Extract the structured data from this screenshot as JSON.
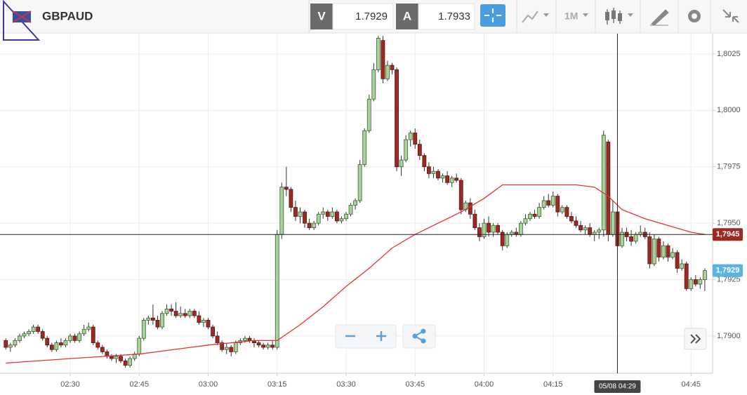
{
  "toolbar": {
    "symbol": "GBPAUD",
    "bid_label": "V",
    "bid": "1.7929",
    "ask_label": "A",
    "ask": "1.7933",
    "timeframe": "1M"
  },
  "chart_data": {
    "type": "candlestick",
    "x": [
      "02:16",
      "02:17",
      "02:18",
      "02:19",
      "02:20",
      "02:21",
      "02:22",
      "02:23",
      "02:24",
      "02:25",
      "02:26",
      "02:27",
      "02:28",
      "02:29",
      "02:30",
      "02:31",
      "02:32",
      "02:33",
      "02:34",
      "02:35",
      "02:36",
      "02:37",
      "02:38",
      "02:39",
      "02:40",
      "02:41",
      "02:42",
      "02:43",
      "02:44",
      "02:45",
      "02:46",
      "02:47",
      "02:48",
      "02:49",
      "02:50",
      "02:51",
      "02:52",
      "02:53",
      "02:54",
      "02:55",
      "02:56",
      "02:57",
      "02:58",
      "02:59",
      "03:00",
      "03:01",
      "03:02",
      "03:03",
      "03:04",
      "03:05",
      "03:06",
      "03:07",
      "03:08",
      "03:09",
      "03:10",
      "03:11",
      "03:12",
      "03:13",
      "03:14",
      "03:15",
      "03:16",
      "03:17",
      "03:18",
      "03:19",
      "03:20",
      "03:21",
      "03:22",
      "03:23",
      "03:24",
      "03:25",
      "03:26",
      "03:27",
      "03:28",
      "03:29",
      "03:30",
      "03:31",
      "03:32",
      "03:33",
      "03:34",
      "03:35",
      "03:36",
      "03:37",
      "03:38",
      "03:39",
      "03:40",
      "03:41",
      "03:42",
      "03:43",
      "03:44",
      "03:45",
      "03:46",
      "03:47",
      "03:48",
      "03:49",
      "03:50",
      "03:51",
      "03:52",
      "03:53",
      "03:54",
      "03:55",
      "03:56",
      "03:57",
      "03:58",
      "03:59",
      "04:00",
      "04:01",
      "04:02",
      "04:03",
      "04:04",
      "04:05",
      "04:06",
      "04:07",
      "04:08",
      "04:09",
      "04:10",
      "04:11",
      "04:12",
      "04:13",
      "04:14",
      "04:15",
      "04:16",
      "04:17",
      "04:18",
      "04:19",
      "04:20",
      "04:21",
      "04:22",
      "04:23",
      "04:24",
      "04:25",
      "04:26",
      "04:27",
      "04:28",
      "04:29",
      "04:30",
      "04:31",
      "04:32",
      "04:33",
      "04:34",
      "04:35",
      "04:36",
      "04:37",
      "04:38",
      "04:39",
      "04:40",
      "04:41",
      "04:42",
      "04:43",
      "04:44",
      "04:45",
      "04:46",
      "04:47",
      "04:48"
    ],
    "ohlc": [
      [
        1.7898,
        1.7899,
        1.7894,
        1.7895
      ],
      [
        1.7895,
        1.7897,
        1.7893,
        1.7896
      ],
      [
        1.7896,
        1.7899,
        1.7895,
        1.7898
      ],
      [
        1.7898,
        1.7901,
        1.7897,
        1.79
      ],
      [
        1.79,
        1.7902,
        1.7899,
        1.7901
      ],
      [
        1.7901,
        1.7903,
        1.79,
        1.7902
      ],
      [
        1.7902,
        1.7905,
        1.7901,
        1.7904
      ],
      [
        1.7904,
        1.7905,
        1.7901,
        1.7902
      ],
      [
        1.7902,
        1.7903,
        1.7898,
        1.7899
      ],
      [
        1.7899,
        1.79,
        1.7895,
        1.7896
      ],
      [
        1.7896,
        1.7897,
        1.7893,
        1.7894
      ],
      [
        1.7894,
        1.7898,
        1.7893,
        1.7897
      ],
      [
        1.7897,
        1.7899,
        1.7895,
        1.7896
      ],
      [
        1.7896,
        1.7899,
        1.7895,
        1.7898
      ],
      [
        1.7898,
        1.7901,
        1.7897,
        1.79
      ],
      [
        1.79,
        1.7901,
        1.7897,
        1.7898
      ],
      [
        1.7898,
        1.7902,
        1.7897,
        1.7901
      ],
      [
        1.7901,
        1.7905,
        1.79,
        1.7903
      ],
      [
        1.7903,
        1.7906,
        1.7902,
        1.7904
      ],
      [
        1.7904,
        1.7905,
        1.7896,
        1.7897
      ],
      [
        1.7897,
        1.7898,
        1.7894,
        1.7895
      ],
      [
        1.7895,
        1.7896,
        1.7892,
        1.7893
      ],
      [
        1.7893,
        1.7894,
        1.789,
        1.7891
      ],
      [
        1.7891,
        1.7892,
        1.7889,
        1.789
      ],
      [
        1.789,
        1.7892,
        1.7888,
        1.7891
      ],
      [
        1.7891,
        1.7892,
        1.7888,
        1.7889
      ],
      [
        1.7889,
        1.789,
        1.7886,
        1.7887
      ],
      [
        1.7887,
        1.7891,
        1.7886,
        1.789
      ],
      [
        1.789,
        1.7893,
        1.7889,
        1.7892
      ],
      [
        1.7892,
        1.79,
        1.7891,
        1.7899
      ],
      [
        1.7899,
        1.7908,
        1.7898,
        1.7907
      ],
      [
        1.7907,
        1.7909,
        1.7905,
        1.7908
      ],
      [
        1.7908,
        1.7914,
        1.7905,
        1.7907
      ],
      [
        1.7907,
        1.7909,
        1.7903,
        1.7904
      ],
      [
        1.7904,
        1.7911,
        1.7903,
        1.791
      ],
      [
        1.791,
        1.7914,
        1.7909,
        1.7912
      ],
      [
        1.7912,
        1.7914,
        1.7909,
        1.7911
      ],
      [
        1.7911,
        1.7915,
        1.7908,
        1.7909
      ],
      [
        1.7909,
        1.7913,
        1.7908,
        1.791
      ],
      [
        1.791,
        1.7912,
        1.7908,
        1.7909
      ],
      [
        1.7909,
        1.7912,
        1.7908,
        1.7911
      ],
      [
        1.7911,
        1.7912,
        1.7908,
        1.7909
      ],
      [
        1.7909,
        1.7911,
        1.7905,
        1.7906
      ],
      [
        1.7906,
        1.7908,
        1.7904,
        1.7907
      ],
      [
        1.7907,
        1.7908,
        1.7903,
        1.7904
      ],
      [
        1.7904,
        1.7905,
        1.7899,
        1.79
      ],
      [
        1.79,
        1.7902,
        1.7896,
        1.7897
      ],
      [
        1.7897,
        1.7898,
        1.7893,
        1.7894
      ],
      [
        1.7894,
        1.7897,
        1.7892,
        1.7895
      ],
      [
        1.7895,
        1.7896,
        1.7891,
        1.7893
      ],
      [
        1.7893,
        1.7898,
        1.7892,
        1.7897
      ],
      [
        1.7897,
        1.7899,
        1.7896,
        1.7898
      ],
      [
        1.7898,
        1.79,
        1.7897,
        1.7899
      ],
      [
        1.7899,
        1.79,
        1.7897,
        1.7898
      ],
      [
        1.7898,
        1.7899,
        1.7895,
        1.7897
      ],
      [
        1.7897,
        1.7898,
        1.7895,
        1.7896
      ],
      [
        1.7896,
        1.7897,
        1.7894,
        1.7895
      ],
      [
        1.7895,
        1.7897,
        1.7894,
        1.7896
      ],
      [
        1.7896,
        1.7898,
        1.7894,
        1.7895
      ],
      [
        1.7895,
        1.7947,
        1.7894,
        1.7945
      ],
      [
        1.7945,
        1.7968,
        1.7943,
        1.7966
      ],
      [
        1.7966,
        1.7975,
        1.7962,
        1.7965
      ],
      [
        1.7965,
        1.7966,
        1.7955,
        1.7957
      ],
      [
        1.7957,
        1.796,
        1.7951,
        1.7953
      ],
      [
        1.7953,
        1.7957,
        1.795,
        1.7955
      ],
      [
        1.7955,
        1.7956,
        1.7948,
        1.795
      ],
      [
        1.795,
        1.7952,
        1.7947,
        1.7948
      ],
      [
        1.7948,
        1.7951,
        1.7947,
        1.795
      ],
      [
        1.795,
        1.7955,
        1.7949,
        1.7954
      ],
      [
        1.7954,
        1.7957,
        1.7952,
        1.7955
      ],
      [
        1.7955,
        1.7956,
        1.7951,
        1.7953
      ],
      [
        1.7953,
        1.7957,
        1.7952,
        1.7955
      ],
      [
        1.7955,
        1.7956,
        1.795,
        1.7951
      ],
      [
        1.7951,
        1.7953,
        1.795,
        1.7952
      ],
      [
        1.7952,
        1.7955,
        1.7951,
        1.7954
      ],
      [
        1.7954,
        1.7959,
        1.7953,
        1.7958
      ],
      [
        1.7958,
        1.7961,
        1.7956,
        1.796
      ],
      [
        1.796,
        1.7978,
        1.7959,
        1.7976
      ],
      [
        1.7976,
        1.7992,
        1.7975,
        1.7991
      ],
      [
        1.7991,
        1.8007,
        1.799,
        1.8005
      ],
      [
        1.8005,
        1.8021,
        1.8004,
        1.8018
      ],
      [
        1.8018,
        1.8033,
        1.8017,
        1.8032
      ],
      [
        1.8031,
        1.8033,
        1.8012,
        1.8014
      ],
      [
        1.8014,
        1.8022,
        1.8013,
        1.802
      ],
      [
        1.802,
        1.8021,
        1.8016,
        1.8018
      ],
      [
        1.8018,
        1.8019,
        1.7973,
        1.7975
      ],
      [
        1.7975,
        1.798,
        1.7971,
        1.7978
      ],
      [
        1.7978,
        1.7989,
        1.7977,
        1.7987
      ],
      [
        1.7987,
        1.7991,
        1.7984,
        1.799
      ],
      [
        1.799,
        1.7992,
        1.7983,
        1.7985
      ],
      [
        1.7985,
        1.7987,
        1.7978,
        1.798
      ],
      [
        1.798,
        1.7981,
        1.7973,
        1.7975
      ],
      [
        1.7975,
        1.7977,
        1.797,
        1.7972
      ],
      [
        1.7972,
        1.7975,
        1.797,
        1.7973
      ],
      [
        1.7973,
        1.7974,
        1.7969,
        1.797
      ],
      [
        1.797,
        1.7972,
        1.7968,
        1.7971
      ],
      [
        1.7971,
        1.7973,
        1.7967,
        1.7968
      ],
      [
        1.7968,
        1.7971,
        1.7966,
        1.797
      ],
      [
        1.797,
        1.7972,
        1.7968,
        1.7969
      ],
      [
        1.7969,
        1.797,
        1.7954,
        1.7956
      ],
      [
        1.7956,
        1.796,
        1.7955,
        1.7959
      ],
      [
        1.7959,
        1.7961,
        1.7952,
        1.7954
      ],
      [
        1.7954,
        1.7956,
        1.7947,
        1.7948
      ],
      [
        1.7948,
        1.795,
        1.7942,
        1.7944
      ],
      [
        1.7944,
        1.7952,
        1.7943,
        1.795
      ],
      [
        1.795,
        1.7953,
        1.7944,
        1.7946
      ],
      [
        1.7946,
        1.795,
        1.7944,
        1.7949
      ],
      [
        1.7949,
        1.795,
        1.7945,
        1.7946
      ],
      [
        1.7946,
        1.7947,
        1.7938,
        1.794
      ],
      [
        1.794,
        1.7946,
        1.7939,
        1.7945
      ],
      [
        1.7945,
        1.7947,
        1.7944,
        1.7946
      ],
      [
        1.7946,
        1.7948,
        1.7944,
        1.7945
      ],
      [
        1.7945,
        1.7951,
        1.7944,
        1.795
      ],
      [
        1.795,
        1.7954,
        1.7949,
        1.7952
      ],
      [
        1.7952,
        1.7955,
        1.7951,
        1.7954
      ],
      [
        1.7954,
        1.7956,
        1.7952,
        1.7953
      ],
      [
        1.7953,
        1.7959,
        1.7952,
        1.7957
      ],
      [
        1.7957,
        1.7962,
        1.7956,
        1.796
      ],
      [
        1.796,
        1.7963,
        1.7957,
        1.7958
      ],
      [
        1.7958,
        1.7964,
        1.7957,
        1.7962
      ],
      [
        1.7962,
        1.7963,
        1.7953,
        1.7955
      ],
      [
        1.7955,
        1.7958,
        1.7954,
        1.7957
      ],
      [
        1.7957,
        1.7958,
        1.7952,
        1.7953
      ],
      [
        1.7953,
        1.7955,
        1.795,
        1.7951
      ],
      [
        1.7951,
        1.7953,
        1.7948,
        1.7949
      ],
      [
        1.7949,
        1.7951,
        1.7946,
        1.7947
      ],
      [
        1.7947,
        1.7949,
        1.7945,
        1.7948
      ],
      [
        1.7948,
        1.795,
        1.7944,
        1.7945
      ],
      [
        1.7945,
        1.7947,
        1.7942,
        1.7946
      ],
      [
        1.7946,
        1.7948,
        1.7943,
        1.7947
      ],
      [
        1.7947,
        1.7991,
        1.7944,
        1.7989
      ],
      [
        1.7986,
        1.7987,
        1.7942,
        1.7945
      ],
      [
        1.7945,
        1.796,
        1.7944,
        1.7955
      ],
      [
        1.7955,
        1.7956,
        1.7939,
        1.794
      ],
      [
        1.794,
        1.7948,
        1.7939,
        1.7946
      ],
      [
        1.7946,
        1.7948,
        1.7942,
        1.7944
      ],
      [
        1.7944,
        1.7947,
        1.794,
        1.7942
      ],
      [
        1.7942,
        1.7946,
        1.7941,
        1.7945
      ],
      [
        1.7945,
        1.7949,
        1.7944,
        1.7946
      ],
      [
        1.7946,
        1.7948,
        1.7943,
        1.7944
      ],
      [
        1.7944,
        1.7946,
        1.793,
        1.7932
      ],
      [
        1.7932,
        1.7945,
        1.7931,
        1.7943
      ],
      [
        1.7943,
        1.7944,
        1.7933,
        1.7935
      ],
      [
        1.7935,
        1.7942,
        1.7934,
        1.794
      ],
      [
        1.794,
        1.7941,
        1.7933,
        1.7935
      ],
      [
        1.7935,
        1.7939,
        1.7934,
        1.7937
      ],
      [
        1.7937,
        1.7938,
        1.7928,
        1.793
      ],
      [
        1.793,
        1.7934,
        1.7929,
        1.7932
      ],
      [
        1.7932,
        1.7933,
        1.792,
        1.7921
      ],
      [
        1.7921,
        1.7926,
        1.792,
        1.7925
      ],
      [
        1.7925,
        1.7927,
        1.7922,
        1.7923
      ],
      [
        1.7923,
        1.7926,
        1.7921,
        1.7925
      ],
      [
        1.7925,
        1.793,
        1.792,
        1.7929
      ]
    ],
    "up_color": "#a8d49a",
    "down_color": "#9c2a22",
    "moving_average": {
      "color": "#e03535",
      "x": [
        "02:16",
        "02:30",
        "02:45",
        "03:00",
        "03:10",
        "03:15",
        "03:20",
        "03:25",
        "03:30",
        "03:35",
        "03:40",
        "03:45",
        "03:50",
        "03:55",
        "04:00",
        "04:04",
        "04:10",
        "04:20",
        "04:24",
        "04:27",
        "04:30",
        "04:35",
        "04:40",
        "04:45",
        "04:48"
      ],
      "values": [
        1.7888,
        1.789,
        1.7892,
        1.7896,
        1.7898,
        1.7898,
        1.7905,
        1.7913,
        1.7922,
        1.793,
        1.7939,
        1.7945,
        1.795,
        1.7955,
        1.7961,
        1.7967,
        1.7967,
        1.7967,
        1.7966,
        1.7962,
        1.7956,
        1.7952,
        1.7949,
        1.7946,
        1.7945
      ]
    },
    "ylim": [
      1.78835,
      1.8034
    ],
    "yticks": [
      {
        "value": 1.79,
        "label": "1,7900"
      },
      {
        "value": 1.7925,
        "label": "1,7925"
      },
      {
        "value": 1.795,
        "label": "1,7950"
      },
      {
        "value": 1.7975,
        "label": "1,7975"
      },
      {
        "value": 1.8,
        "label": "1,8000"
      },
      {
        "value": 1.8025,
        "label": "1,8025"
      }
    ],
    "xticks": [
      "02:30",
      "02:45",
      "03:00",
      "03:15",
      "03:30",
      "03:45",
      "04:00",
      "04:15",
      "04:45"
    ],
    "grid": true,
    "crosshair": {
      "price": {
        "value": 1.7945,
        "label": "1,7945"
      },
      "time_label": "05/08 04:29",
      "color": "#9c2a22"
    },
    "last_price": {
      "value": 1.7929,
      "label": "1,7929"
    },
    "last_price_color": "#5ab4e0"
  }
}
